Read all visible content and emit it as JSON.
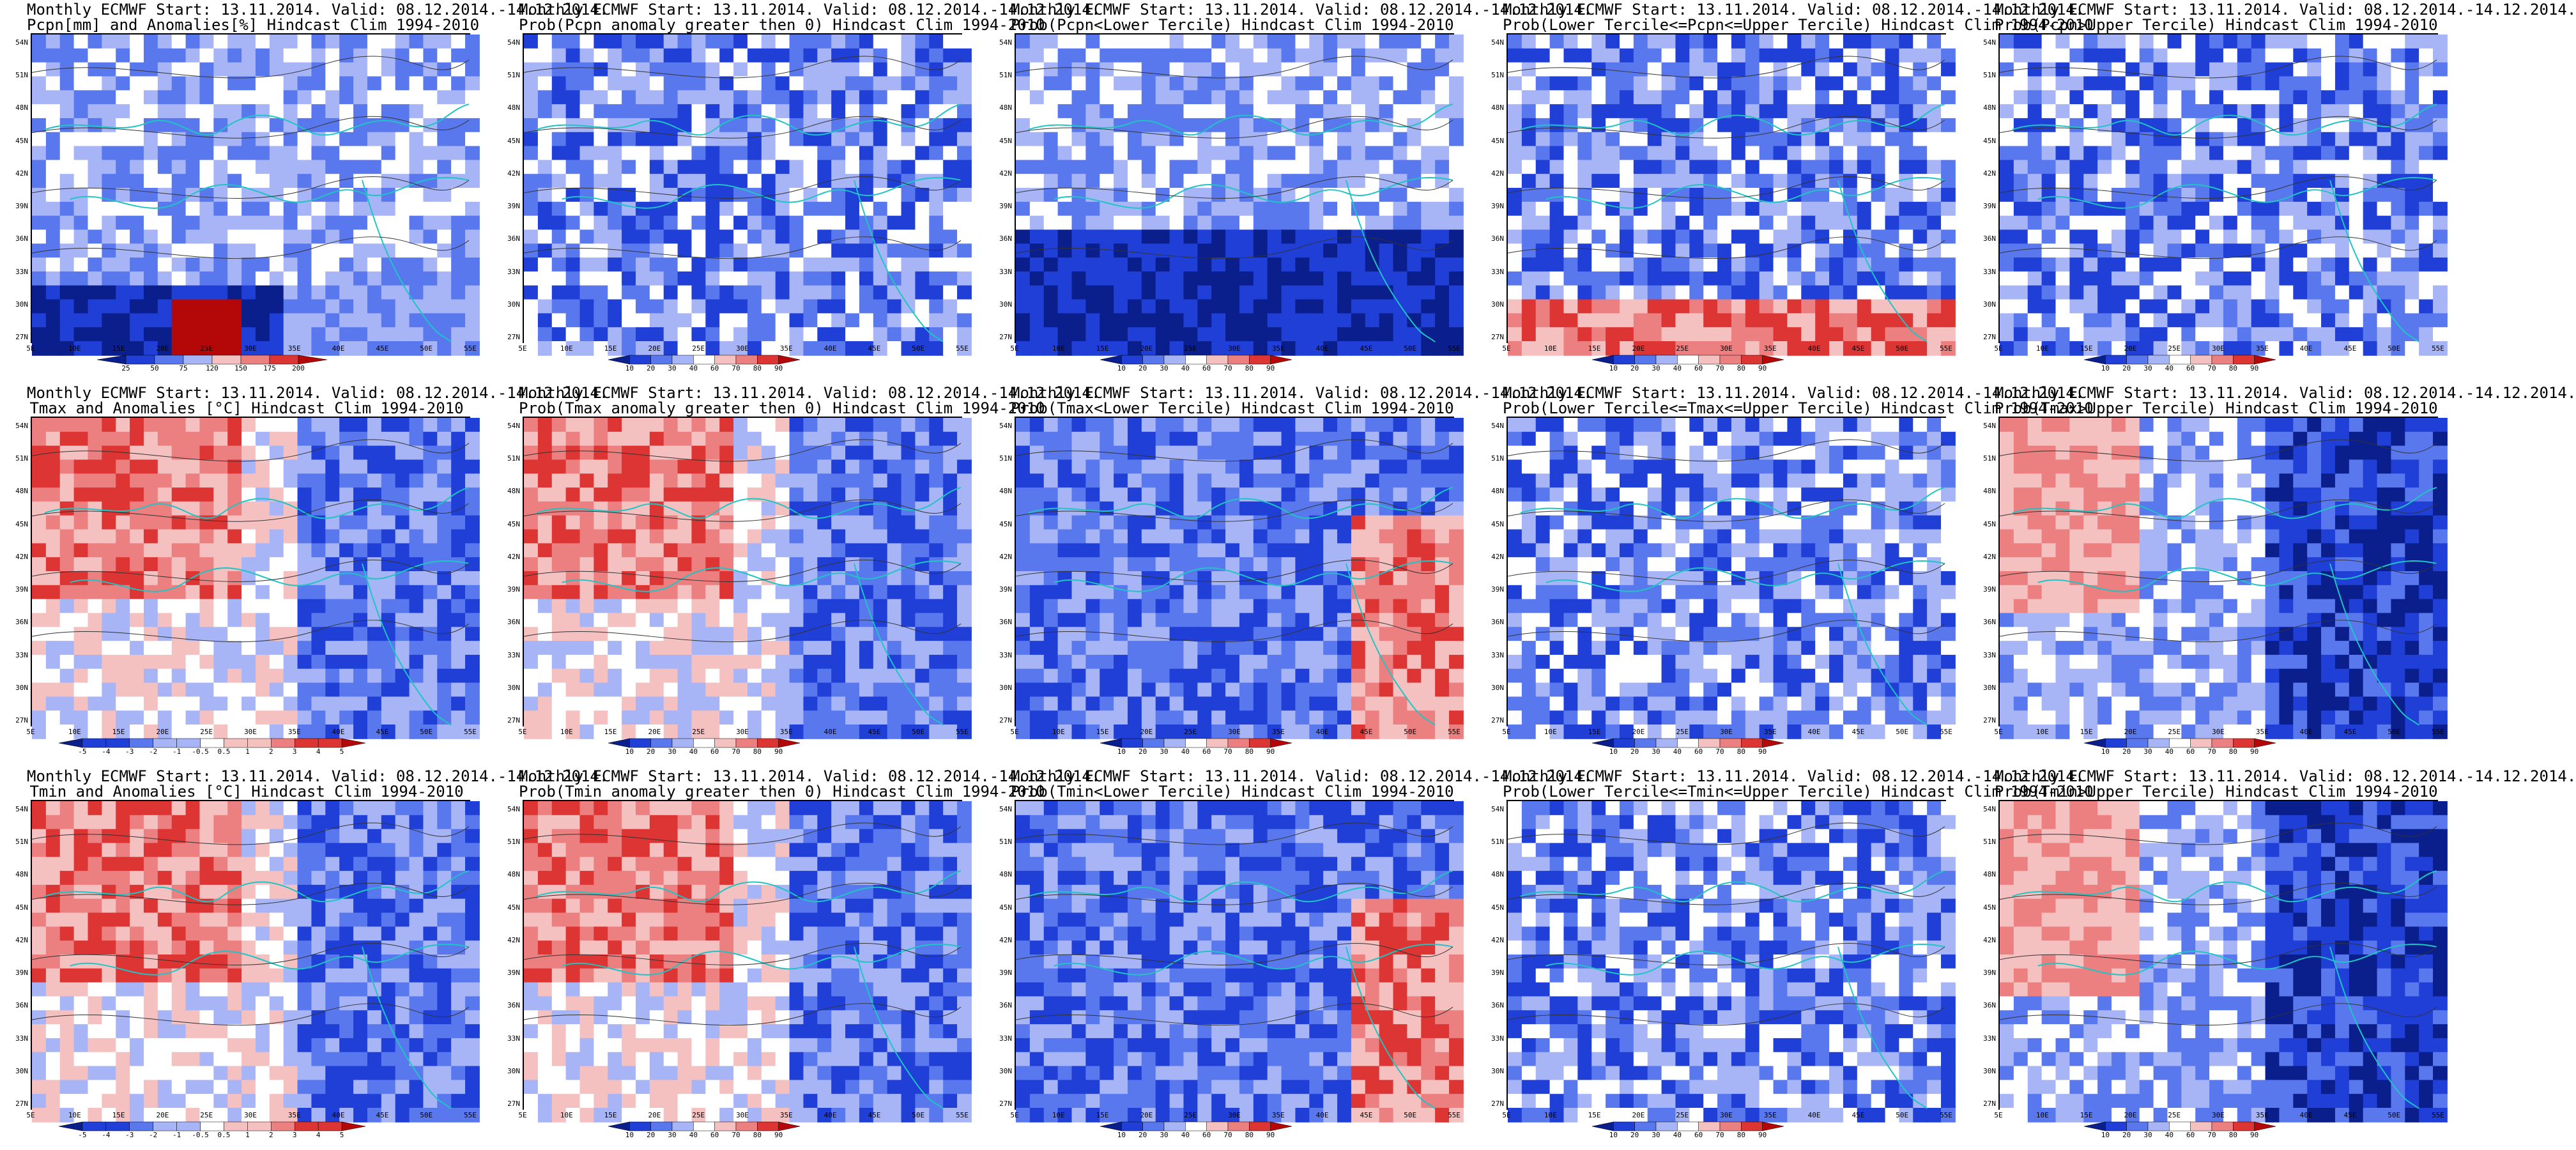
{
  "lon_ticks": [
    "5E",
    "10E",
    "15E",
    "20E",
    "25E",
    "30E",
    "35E",
    "40E",
    "45E",
    "50E",
    "55E"
  ],
  "lat_ticks": [
    "54N",
    "51N",
    "48N",
    "45N",
    "42N",
    "39N",
    "36N",
    "33N",
    "30N",
    "27N"
  ],
  "palettes": {
    "anom_pcp": [
      "#0a1e8c",
      "#1f3fd6",
      "#5a78ee",
      "#a7b4f6",
      "#ffffff",
      "#f5c0c0",
      "#ec7f80",
      "#dd3434",
      "#b40808"
    ],
    "anom_t": [
      "#0a1e8c",
      "#1f3fd6",
      "#5a78ee",
      "#a7b4f6",
      "#ffffff",
      "#f5c0c0",
      "#ec7f80",
      "#dd3434",
      "#b40808"
    ],
    "prob": [
      "#0a1e8c",
      "#1f3fd6",
      "#5a78ee",
      "#a7b4f6",
      "#ffffff",
      "#f5c0c0",
      "#ec7f80",
      "#dd3434",
      "#b40808"
    ]
  },
  "panels": [
    {
      "title1": "Monthly ECMWF Start: 13.11.2014. Valid: 08.12.2014.-14.12.2014.",
      "title2": "Pcpn[mm] and Anomalies[%] Hindcast Clim 1994-2010",
      "palette": "anom_pcp",
      "cbar": [
        "25",
        "50",
        "75",
        "120",
        "150",
        "175",
        "200"
      ],
      "tone": "pcp_anom"
    },
    {
      "title1": "Monthly ECMWF Start: 13.11.2014. Valid: 08.12.2014.-14.12.2014.",
      "title2": "Prob(Pcpn anomaly greater then 0) Hindcast Clim 1994-2010",
      "palette": "prob",
      "cbar": [
        "10",
        "20",
        "30",
        "40",
        "60",
        "70",
        "80",
        "90"
      ],
      "tone": "blue"
    },
    {
      "title1": "Monthly ECMWF Start: 13.11.2014. Valid: 08.12.2014.-14.12.2014.",
      "title2": "Prob(Pcpn<Lower Tercile) Hindcast Clim 1994-2010",
      "palette": "prob",
      "cbar": [
        "10",
        "20",
        "30",
        "40",
        "60",
        "70",
        "80",
        "90"
      ],
      "tone": "blue_south"
    },
    {
      "title1": "Monthly ECMWF Start: 13.11.2014. Valid: 08.12.2014.-14.12.2014.",
      "title2": "Prob(Lower Tercile<=Pcpn<=Upper Tercile) Hindcast Clim 1994-2010",
      "palette": "prob",
      "cbar": [
        "10",
        "20",
        "30",
        "40",
        "60",
        "70",
        "80",
        "90"
      ],
      "tone": "red_south"
    },
    {
      "title1": "Monthly ECMWF Start: 13.11.2014. Valid: 08.12.2014.-14.12.2014.",
      "title2": "Prob(Pcpn>Upper Tercile) Hindcast Clim 1994-2010",
      "palette": "prob",
      "cbar": [
        "10",
        "20",
        "30",
        "40",
        "60",
        "70",
        "80",
        "90"
      ],
      "tone": "blue"
    },
    {
      "title1": "Monthly ECMWF Start: 13.11.2014. Valid: 08.12.2014.-14.12.2014.",
      "title2": "Tmax and Anomalies [°C] Hindcast Clim 1994-2010",
      "palette": "anom_t",
      "cbar": [
        "-5",
        "-4",
        "-3",
        "-2",
        "-1",
        "-0.5",
        "0.5",
        "1",
        "2",
        "3",
        "4",
        "5"
      ],
      "tone": "warm_nw"
    },
    {
      "title1": "Monthly ECMWF Start: 13.11.2014. Valid: 08.12.2014.-14.12.2014.",
      "title2": "Prob(Tmax anomaly greater then 0) Hindcast Clim 1994-2010",
      "palette": "prob",
      "cbar": [
        "10",
        "20",
        "30",
        "40",
        "60",
        "70",
        "80",
        "90"
      ],
      "tone": "warm_nw"
    },
    {
      "title1": "Monthly ECMWF Start: 13.11.2014. Valid: 08.12.2014.-14.12.2014.",
      "title2": "Prob(Tmax<Lower Tercile) Hindcast Clim 1994-2010",
      "palette": "prob",
      "cbar": [
        "10",
        "20",
        "30",
        "40",
        "60",
        "70",
        "80",
        "90"
      ],
      "tone": "blue_red_se"
    },
    {
      "title1": "Monthly ECMWF Start: 13.11.2014. Valid: 08.12.2014.-14.12.2014.",
      "title2": "Prob(Lower Tercile<=Tmax<=Upper Tercile) Hindcast Clim 1994-2010",
      "palette": "prob",
      "cbar": [
        "10",
        "20",
        "30",
        "40",
        "60",
        "70",
        "80",
        "90"
      ],
      "tone": "blue"
    },
    {
      "title1": "Monthly ECMWF Start: 13.11.2014. Valid: 08.12.2014.-14.12.2014.",
      "title2": "Prob(Tmax>Upper Tercile) Hindcast Clim 1994-2010",
      "palette": "prob",
      "cbar": [
        "10",
        "20",
        "30",
        "40",
        "60",
        "70",
        "80",
        "90"
      ],
      "tone": "warm_w_blue_e"
    },
    {
      "title1": "Monthly ECMWF Start: 13.11.2014. Valid: 08.12.2014.-14.12.2014.",
      "title2": "Tmin and Anomalies [°C] Hindcast Clim 1994-2010",
      "palette": "anom_t",
      "cbar": [
        "-5",
        "-4",
        "-3",
        "-2",
        "-1",
        "-0.5",
        "0.5",
        "1",
        "2",
        "3",
        "4",
        "5"
      ],
      "tone": "warm_nw"
    },
    {
      "title1": "Monthly ECMWF Start: 13.11.2014. Valid: 08.12.2014.-14.12.2014.",
      "title2": "Prob(Tmin anomaly greater then 0) Hindcast Clim 1994-2010",
      "palette": "prob",
      "cbar": [
        "10",
        "20",
        "30",
        "40",
        "60",
        "70",
        "80",
        "90"
      ],
      "tone": "warm_nw"
    },
    {
      "title1": "Monthly ECMWF Start: 13.11.2014. Valid: 08.12.2014.-14.12.2014.",
      "title2": "Prob(Tmin<Lower Tercile) Hindcast Clim 1994-2010",
      "palette": "prob",
      "cbar": [
        "10",
        "20",
        "30",
        "40",
        "60",
        "70",
        "80",
        "90"
      ],
      "tone": "blue_red_se"
    },
    {
      "title1": "Monthly ECMWF Start: 13.11.2014. Valid: 08.12.2014.-14.12.2014.",
      "title2": "Prob(Lower Tercile<=Tmin<=Upper Tercile) Hindcast Clim 1994-2010",
      "palette": "prob",
      "cbar": [
        "10",
        "20",
        "30",
        "40",
        "60",
        "70",
        "80",
        "90"
      ],
      "tone": "blue"
    },
    {
      "title1": "Monthly ECMWF Start: 13.11.2014. Valid: 08.12.2014.-14.12.2014.",
      "title2": "Prob(Tmin>Upper Tercile) Hindcast Clim 1994-2010",
      "palette": "prob",
      "cbar": [
        "10",
        "20",
        "30",
        "40",
        "60",
        "70",
        "80",
        "90"
      ],
      "tone": "warm_w_blue_e"
    }
  ]
}
